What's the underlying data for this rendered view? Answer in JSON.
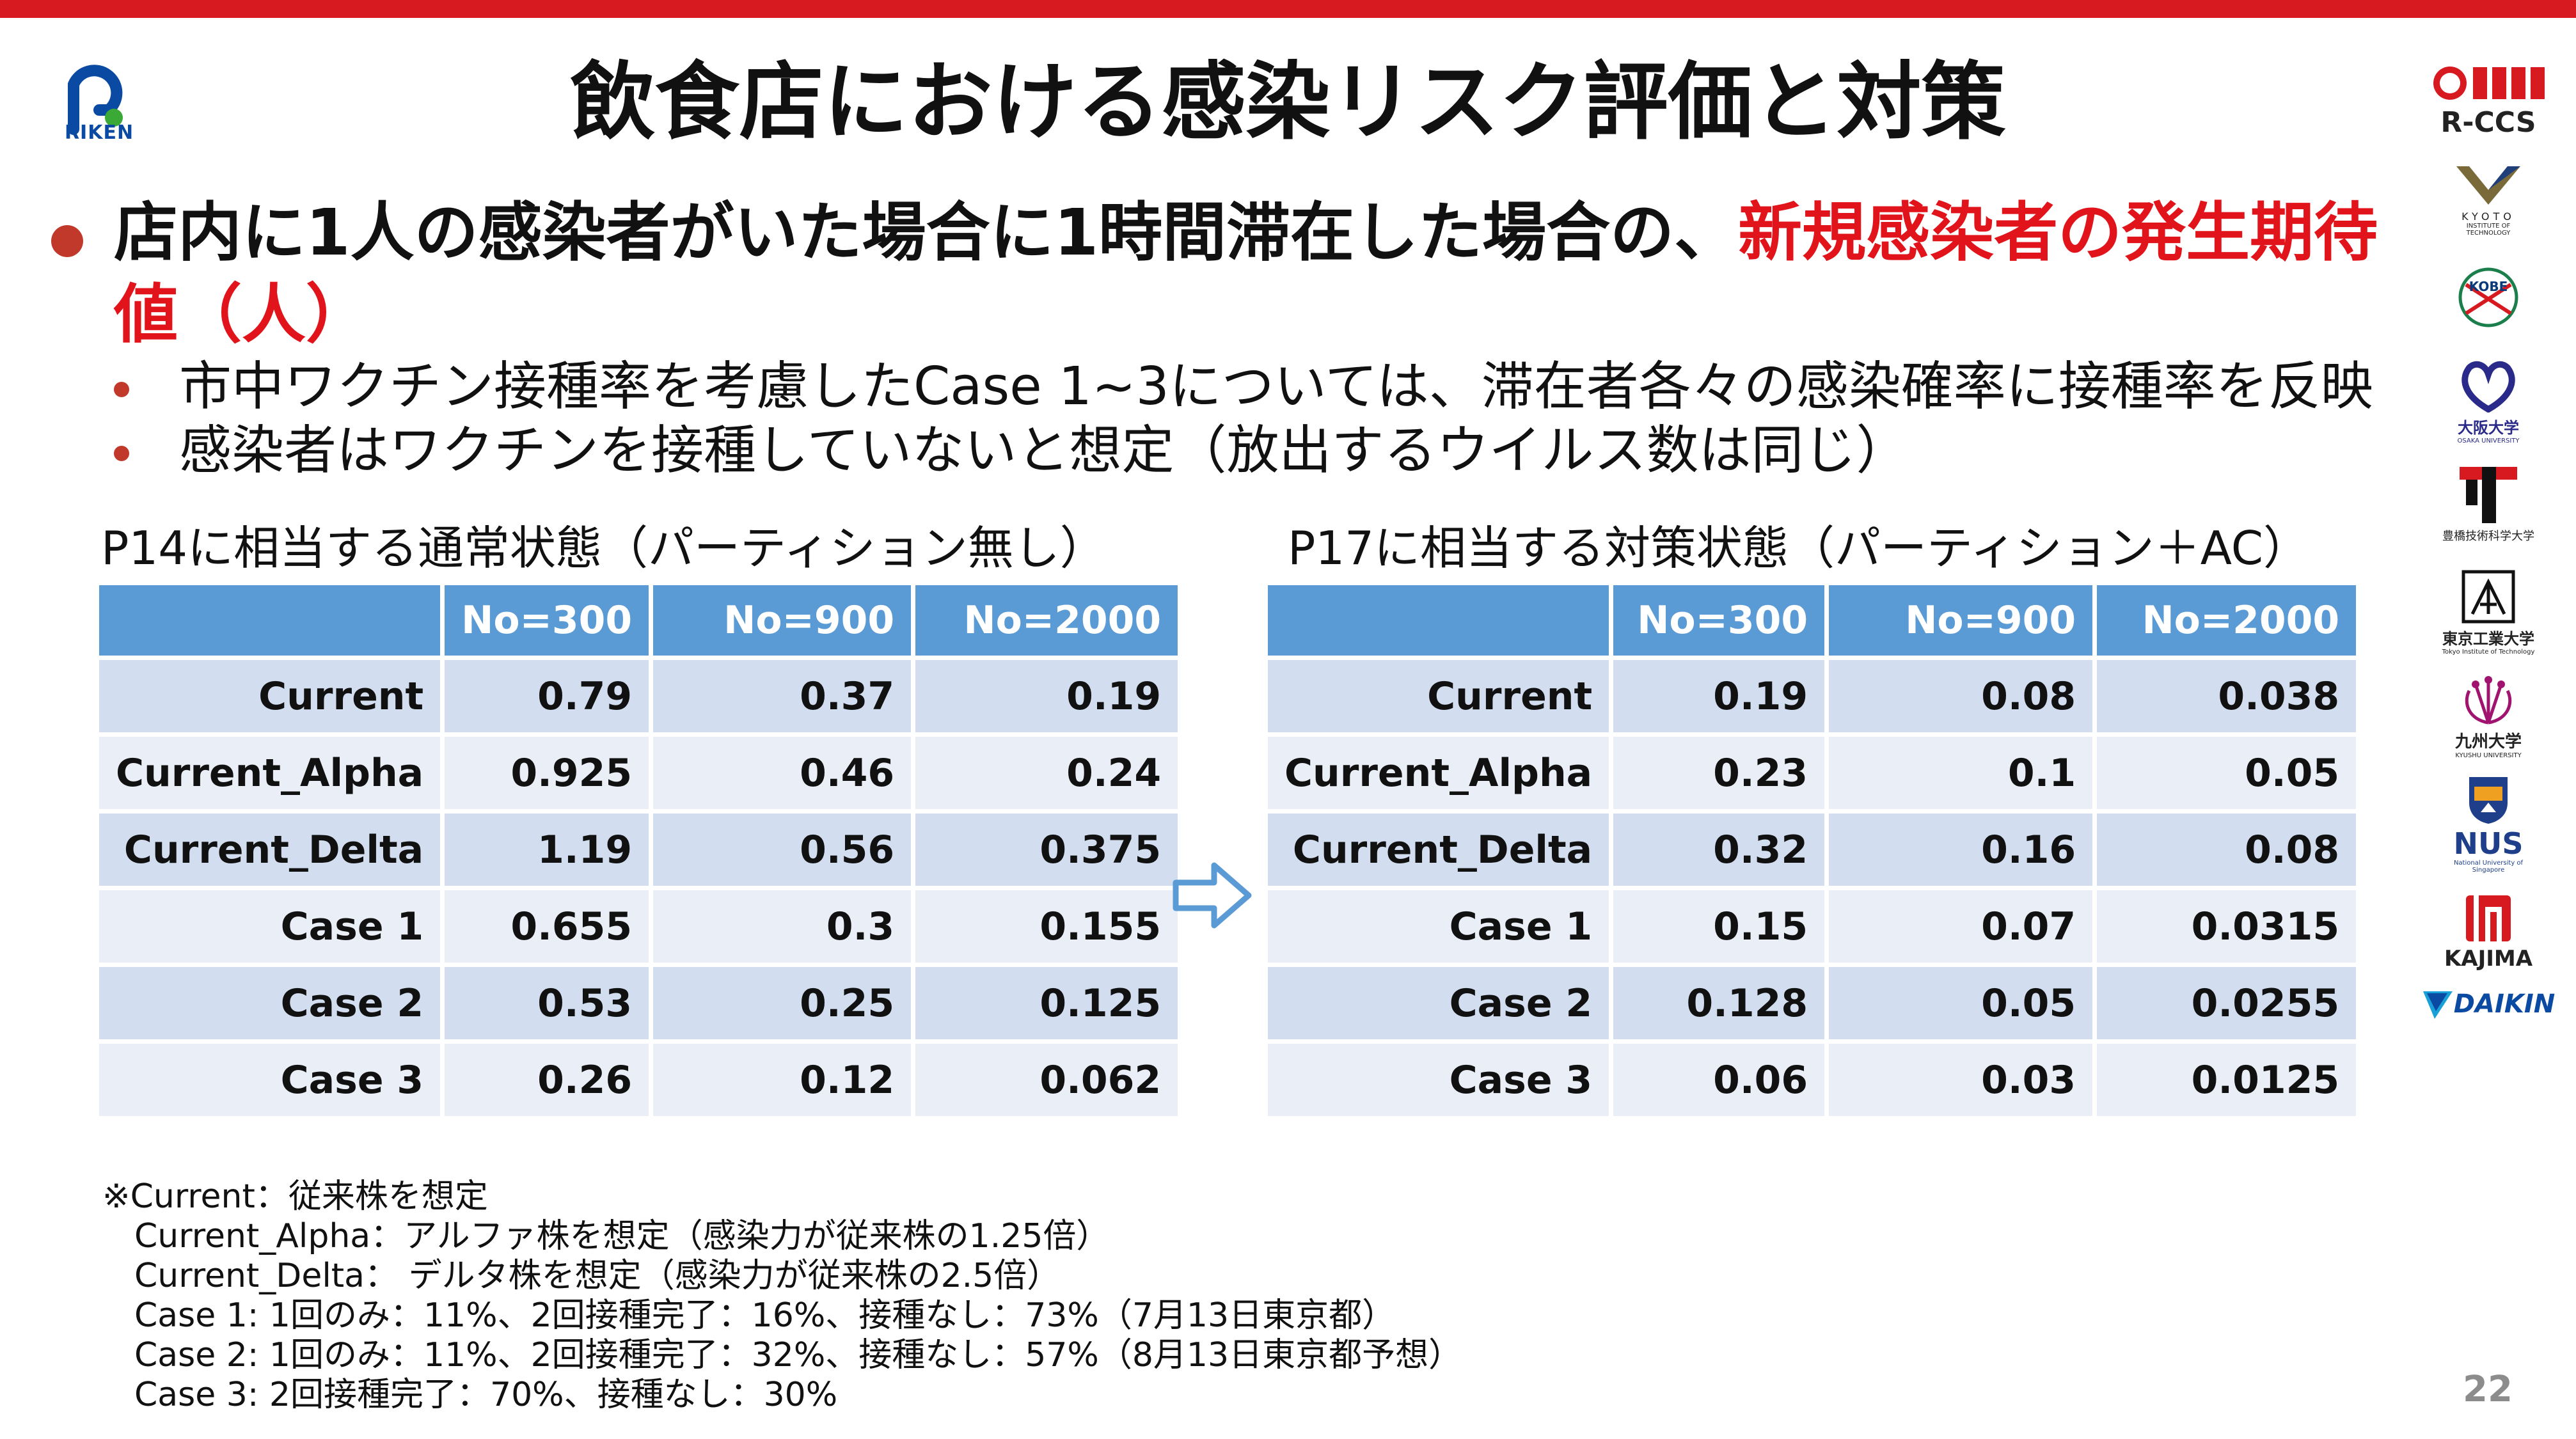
{
  "logo_left": {
    "text": "RIKEN"
  },
  "title": "飲食店における感染リスク評価と対策",
  "bullet": {
    "text_black": "店内に1人の感染者がいた場合に1時間滞在した場合の、",
    "text_red": "新規感染者の発生期待値（人）"
  },
  "sub_bullets": [
    "市中ワクチン接種率を考慮したCase 1~3については、滞在者各々の感染確率に接種率を反映",
    "感染者はワクチンを接種していないと想定（放出するウイルス数は同じ）"
  ],
  "table_left": {
    "caption": "P14に相当する通常状態（パーティション無し）",
    "headers": [
      "",
      "No=300",
      "No=900",
      "No=2000"
    ],
    "rows": [
      [
        "Current",
        "0.79",
        "0.37",
        "0.19"
      ],
      [
        "Current_Alpha",
        "0.925",
        "0.46",
        "0.24"
      ],
      [
        "Current_Delta",
        "1.19",
        "0.56",
        "0.375"
      ],
      [
        "Case 1",
        "0.655",
        "0.3",
        "0.155"
      ],
      [
        "Case 2",
        "0.53",
        "0.25",
        "0.125"
      ],
      [
        "Case 3",
        "0.26",
        "0.12",
        "0.062"
      ]
    ]
  },
  "table_right": {
    "caption": "P17に相当する対策状態（パーティション＋AC）",
    "headers": [
      "",
      "No=300",
      "No=900",
      "No=2000"
    ],
    "rows": [
      [
        "Current",
        "0.19",
        "0.08",
        "0.038"
      ],
      [
        "Current_Alpha",
        "0.23",
        "0.1",
        "0.05"
      ],
      [
        "Current_Delta",
        "0.32",
        "0.16",
        "0.08"
      ],
      [
        "Case 1",
        "0.15",
        "0.07",
        "0.0315"
      ],
      [
        "Case 2",
        "0.128",
        "0.05",
        "0.0255"
      ],
      [
        "Case 3",
        "0.06",
        "0.03",
        "0.0125"
      ]
    ]
  },
  "notes": [
    "※Current：従来株を想定",
    "Current_Alpha：アルファ株を想定（感染力が従来株の1.25倍）",
    "Current_Delta： デルタ株を想定（感染力が従来株の2.5倍）",
    "Case 1: 1回のみ：11%、2回接種完了：16%、接種なし：73%（7月13日東京都）",
    "Case 2: 1回のみ：11%、2回接種完了：32%、接種なし：57%（8月13日東京都予想）",
    "Case 3: 2回接種完了：70%、接種なし：30%"
  ],
  "page_number": "22",
  "logos": {
    "rccs": "R-CCS",
    "kyoto": "KYOTO",
    "kyoto_sub": "INSTITUTE OF TECHNOLOGY",
    "kobe": "KOBE",
    "osaka": "大阪大学",
    "osaka_en": "OSAKA UNIVERSITY",
    "toyohashi": "豊橋技術科学大学",
    "tokyo_tech": "東京工業大学",
    "tokyo_tech_en": "Tokyo Institute of Technology",
    "kyushu": "九州大学",
    "kyushu_en": "KYUSHU UNIVERSITY",
    "nus": "NUS",
    "nus_sub": "National University of Singapore",
    "kajima": "KAJIMA",
    "daikin": "DAIKIN"
  },
  "colors": {
    "accent_red": "#e2141b",
    "top_bar": "#d71920",
    "table_header": "#5b9bd5",
    "row_odd": "#d2deef",
    "row_even": "#eaeff7",
    "arrow": "#5b9bd5"
  }
}
